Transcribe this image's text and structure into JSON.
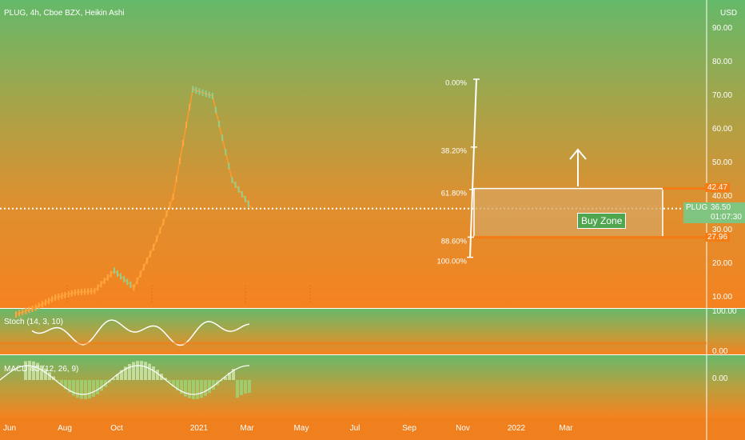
{
  "header": {
    "title": "PLUG, 4h, Cboe BZX, Heikin Ashi",
    "currency": "USD"
  },
  "indicators": {
    "stoch_label": "Stoch (14, 3, 10)",
    "macd_label": "MACD 4C (12, 26, 9)"
  },
  "colors": {
    "accent": "#f57c14",
    "current_price": "#7fc57f",
    "buy_zone_fill": "#d7a45f"
  },
  "chart_data": {
    "type": "candlestick",
    "title": "PLUG, 4h, Cboe BZX, Heikin Ashi",
    "y_axis": {
      "unit": "USD",
      "ylim": [
        6,
        98
      ],
      "ticks": [
        "90.00",
        "80.00",
        "70.00",
        "60.00",
        "50.00",
        "40.00",
        "30.00",
        "20.00",
        "10.00"
      ]
    },
    "x_axis": {
      "ticks": [
        "Jun",
        "Aug",
        "Oct",
        "2021",
        "Mar",
        "May",
        "Jul",
        "Sep",
        "Nov",
        "2022",
        "Mar"
      ]
    },
    "price_series": {
      "name": "PLUG",
      "x": [
        "Jun",
        "",
        "",
        "Aug",
        "",
        "",
        "Oct",
        "",
        "",
        "2021",
        "",
        "",
        "Mar"
      ],
      "values": [
        5.0,
        7.0,
        10.0,
        11.5,
        12.0,
        18.0,
        13.0,
        25.0,
        40.0,
        72.0,
        70.0,
        45.0,
        36.5
      ]
    },
    "current_price": {
      "symbol": "PLUG",
      "value": "36.50",
      "countdown": "01:07:30"
    },
    "fibonacci": {
      "top_price": 75,
      "bottom_price": 22,
      "levels": [
        {
          "label": "0.00%",
          "price": 75
        },
        {
          "label": "38.20%",
          "price": 54.8
        },
        {
          "label": "61.80%",
          "price": 42.2
        },
        {
          "label": "88.60%",
          "price": 28.0
        },
        {
          "label": "100.00%",
          "price": 22
        }
      ]
    },
    "buy_zone": {
      "label": "Buy Zone",
      "upper": "42.47",
      "lower": "27.96",
      "upper_value": 42.47,
      "lower_value": 27.96
    },
    "stoch": {
      "name": "Stoch (14, 3, 10)",
      "ticks": [
        "100.00",
        "0.00"
      ]
    },
    "macd": {
      "name": "MACD 4C (12, 26, 9)",
      "ticks": [
        "0.00"
      ]
    }
  }
}
